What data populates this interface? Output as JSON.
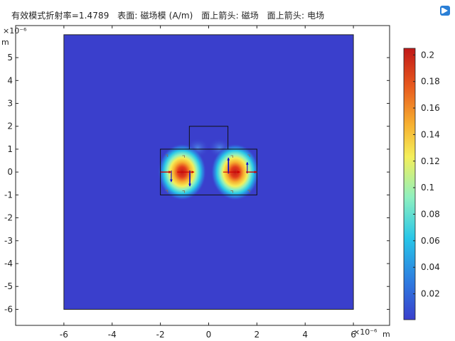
{
  "header": {
    "title": "有效模式折射率=1.4789   表面: 磁场模 (A/m)   面上箭头: 磁场   面上箭头: 电场"
  },
  "chart_data": {
    "type": "heatmap",
    "title": "有效模式折射率=1.4789   表面: 磁场模 (A/m)   面上箭头: 磁场   面上箭头: 电场",
    "x_axis": {
      "range": [
        -8,
        7.5
      ],
      "ticks": [
        -6,
        -4,
        -2,
        0,
        2,
        4,
        6
      ],
      "multiplier": "×10⁻⁶",
      "unit": "m"
    },
    "y_axis": {
      "range": [
        -6.7,
        6.4
      ],
      "ticks": [
        5,
        4,
        3,
        2,
        1,
        0,
        -1,
        -2,
        -3,
        -4,
        -5,
        -6
      ],
      "multiplier": "×10⁻⁶",
      "unit": "m"
    },
    "colorbar": {
      "ticks": [
        "0.2",
        "0.18",
        "0.16",
        "0.14",
        "0.12",
        "0.1",
        "0.08",
        "0.06",
        "0.04",
        "0.02"
      ],
      "range": [
        0.0005,
        0.205
      ],
      "colormap": "rainbow",
      "colors": [
        "#3a3fcc",
        "#2e7be0",
        "#28c6e8",
        "#8ef0c0",
        "#f4ef5a",
        "#f7b030",
        "#e85a1e",
        "#c01818"
      ]
    },
    "domain": {
      "x": [
        -6,
        6
      ],
      "y": [
        -6,
        6
      ],
      "background_value": 0.0005
    },
    "geometry": {
      "rib": {
        "x": [
          -2,
          2
        ],
        "y": [
          -1,
          1
        ]
      },
      "top_block": {
        "x": [
          -0.8,
          0.8
        ],
        "y": [
          1,
          2
        ]
      }
    },
    "field_peaks": [
      {
        "x": -1.1,
        "y": 0,
        "value": 0.205
      },
      {
        "x": 1.1,
        "y": 0,
        "value": 0.205
      }
    ],
    "arrows": {
      "magnetic_field": {
        "color": "#0000cc"
      },
      "electric_field": {
        "color": "#cc0000"
      }
    }
  }
}
